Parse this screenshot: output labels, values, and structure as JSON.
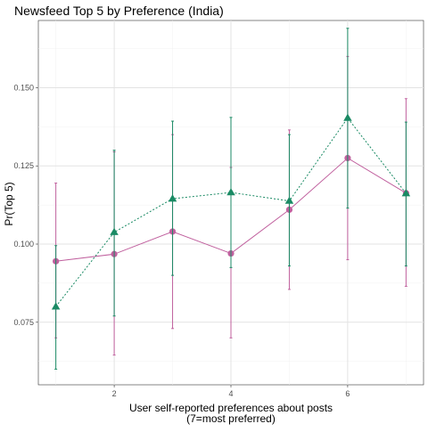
{
  "chart_data": {
    "type": "line",
    "title": "Newsfeed Top 5 by Preference (India)",
    "xlabel_line1": "User self-reported preferences about posts",
    "xlabel_line2": "(7=most preferred)",
    "ylabel": "Pr(Top 5)",
    "x": [
      1,
      2,
      3,
      4,
      5,
      6,
      7
    ],
    "x_ticks": [
      "2",
      "4",
      "6"
    ],
    "y_ticks": [
      "0.075",
      "0.100",
      "0.125",
      "0.150"
    ],
    "xlim": [
      0.7,
      7.3
    ],
    "ylim": [
      0.055,
      0.1715
    ],
    "grid": true,
    "series": [
      {
        "color": "#c0609e",
        "marker": "circle",
        "line_style": "solid",
        "values": [
          0.0945,
          0.0968,
          0.104,
          0.097,
          0.111,
          0.1275,
          0.1163
        ],
        "lower": [
          0.07,
          0.0645,
          0.073,
          0.07,
          0.0855,
          0.095,
          0.0865
        ],
        "upper": [
          0.1195,
          0.1295,
          0.135,
          0.1245,
          0.1365,
          0.16,
          0.1465
        ]
      },
      {
        "color": "#1a8a64",
        "marker": "triangle",
        "line_style": "dotted",
        "values": [
          0.08,
          0.1038,
          0.1145,
          0.1165,
          0.1138,
          0.1403,
          0.1162
        ],
        "lower": [
          0.06,
          0.077,
          0.09,
          0.0925,
          0.093,
          0.1115,
          0.093
        ],
        "upper": [
          0.0995,
          0.13,
          0.1393,
          0.1405,
          0.135,
          0.169,
          0.139
        ]
      }
    ]
  }
}
